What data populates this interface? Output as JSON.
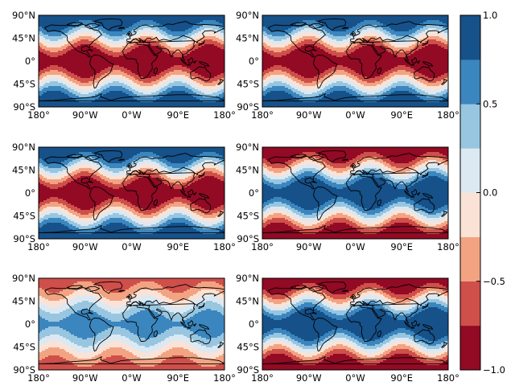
{
  "chart_data": {
    "type": "heatmap",
    "figure": "world map contour plots (6 panels) with shared colorbar",
    "panels": [
      {
        "name": "",
        "pattern": "positive-equator",
        "equator_value": -1.0,
        "pole_value": 1.0
      },
      {
        "name": "",
        "pattern": "positive-equator",
        "equator_value": -1.0,
        "pole_value": 1.0
      },
      {
        "name": "",
        "pattern": "positive-equator",
        "equator_value": -1.0,
        "pole_value": 1.0
      },
      {
        "name": "",
        "pattern": "negative-equator",
        "equator_value": 1.0,
        "pole_value": -1.0
      },
      {
        "name": "",
        "pattern": "weak-negative-equator",
        "equator_value": 0.6,
        "pole_value": -0.6
      },
      {
        "name": "",
        "pattern": "negative-equator",
        "equator_value": 1.0,
        "pole_value": -1.0
      }
    ],
    "x_ticks": [
      "180°",
      "90°W",
      "0°W",
      "90°E",
      "180°"
    ],
    "x_tick_values": [
      -180,
      -90,
      0,
      90,
      180
    ],
    "y_ticks": [
      "90°N",
      "45°N",
      "0°",
      "45°S",
      "90°S"
    ],
    "y_tick_values": [
      90,
      45,
      0,
      -45,
      -90
    ],
    "xlim": [
      -180,
      180
    ],
    "ylim": [
      -90,
      90
    ],
    "colorbar": {
      "ticks": [
        "1.0",
        "0.5",
        "0.0",
        "−0.5",
        "−1.0"
      ],
      "tick_values": [
        1.0,
        0.5,
        0.0,
        -0.5,
        -1.0
      ],
      "range": [
        -1.0,
        1.0
      ],
      "levels": [
        -1.0,
        -0.75,
        -0.5,
        -0.25,
        0.0,
        0.25,
        0.5,
        0.75,
        1.0
      ]
    },
    "colors": [
      "#920a24",
      "#cf4f4a",
      "#f2a382",
      "#fae3d6",
      "#dde9f2",
      "#98c6e0",
      "#3b86be",
      "#165189"
    ],
    "grid": false,
    "legend": "none"
  }
}
